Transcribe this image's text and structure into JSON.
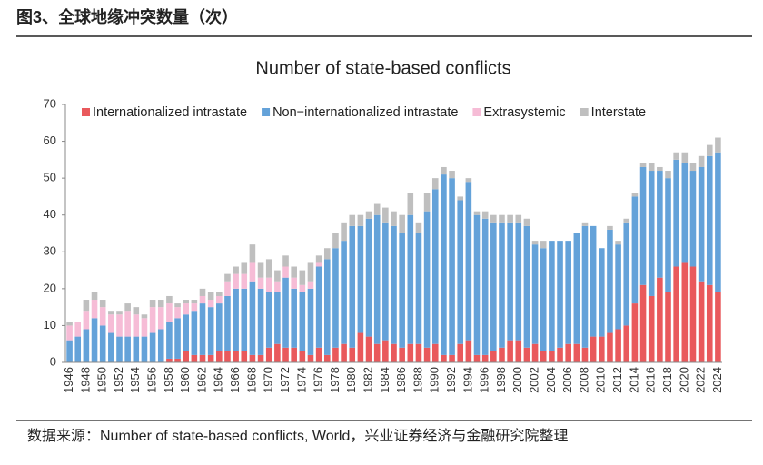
{
  "header": {
    "title": "图3、全球地缘冲突数量（次）"
  },
  "chart_data": {
    "type": "stacked_bar",
    "title": "Number of state-based conflicts",
    "categories": [
      "1946",
      null,
      "1948",
      null,
      "1950",
      null,
      "1952",
      null,
      "1954",
      null,
      "1956",
      null,
      "1958",
      null,
      "1960",
      null,
      "1962",
      null,
      "1964",
      null,
      "1966",
      null,
      "1968",
      null,
      "1970",
      null,
      "1972",
      null,
      "1974",
      null,
      "1976",
      null,
      "1978",
      null,
      "1980",
      null,
      "1982",
      null,
      "1984",
      null,
      "1986",
      null,
      "1988",
      null,
      "1990",
      null,
      "1992",
      null,
      "1994",
      null,
      "1996",
      null,
      "1998",
      null,
      "2000",
      null,
      "2002",
      null,
      "2004",
      null,
      "2006",
      null,
      "2008",
      null,
      "2010",
      null,
      "2012",
      null,
      "2014",
      null,
      "2016",
      null,
      "2018",
      null,
      "2020",
      null,
      "2022",
      null,
      "2024"
    ],
    "series": [
      {
        "name": "Internationalized intrastate",
        "color": "#e9595c",
        "values": [
          0,
          0,
          0,
          0,
          0,
          0,
          0,
          0,
          0,
          0,
          0,
          0,
          1,
          1,
          3,
          2,
          2,
          2,
          3,
          3,
          3,
          3,
          2,
          2,
          4,
          5,
          4,
          4,
          3,
          2,
          4,
          2,
          4,
          5,
          4,
          8,
          7,
          5,
          6,
          5,
          4,
          5,
          5,
          4,
          5,
          2,
          2,
          5,
          6,
          2,
          2,
          3,
          4,
          6,
          6,
          4,
          5,
          3,
          3,
          4,
          5,
          5,
          4,
          7,
          7,
          8,
          9,
          10,
          16,
          21,
          18,
          23,
          19,
          26,
          27,
          26,
          22,
          21,
          19
        ]
      },
      {
        "name": "Non−internationalized intrastate",
        "color": "#64a2d9",
        "values": [
          6,
          7,
          9,
          12,
          10,
          8,
          7,
          7,
          7,
          7,
          8,
          9,
          10,
          11,
          10,
          12,
          14,
          13,
          13,
          15,
          17,
          17,
          20,
          18,
          15,
          14,
          19,
          16,
          16,
          18,
          22,
          26,
          27,
          28,
          33,
          29,
          32,
          35,
          32,
          32,
          31,
          35,
          30,
          37,
          42,
          49,
          48,
          39,
          43,
          38,
          37,
          35,
          34,
          32,
          32,
          33,
          27,
          28,
          30,
          29,
          28,
          30,
          33,
          30,
          24,
          28,
          23,
          28,
          29,
          32,
          34,
          29,
          31,
          29,
          27,
          26,
          31,
          35,
          38
        ]
      },
      {
        "name": "Extrasystemic",
        "color": "#f6bcd6",
        "values": [
          4,
          4,
          5,
          5,
          5,
          5,
          6,
          7,
          6,
          5,
          7,
          6,
          5,
          3,
          3,
          2,
          2,
          2,
          2,
          4,
          4,
          4,
          5,
          3,
          4,
          3,
          3,
          3,
          2,
          2,
          1,
          0,
          0,
          0,
          0,
          0,
          0,
          0,
          0,
          0,
          0,
          0,
          0,
          0,
          0,
          0,
          0,
          0,
          0,
          0,
          0,
          0,
          0,
          0,
          0,
          0,
          0,
          0,
          0,
          0,
          0,
          0,
          0,
          0,
          0,
          0,
          0,
          0,
          0,
          0,
          0,
          0,
          0,
          0,
          0,
          0,
          0,
          0,
          0
        ]
      },
      {
        "name": "Interstate",
        "color": "#bfbfbf",
        "values": [
          1,
          0,
          3,
          2,
          2,
          1,
          1,
          2,
          2,
          1,
          2,
          2,
          2,
          1,
          1,
          1,
          2,
          2,
          1,
          2,
          2,
          3,
          5,
          4,
          5,
          3,
          3,
          3,
          4,
          5,
          2,
          3,
          4,
          5,
          3,
          3,
          2,
          3,
          4,
          4,
          5,
          6,
          3,
          5,
          3,
          2,
          2,
          1,
          1,
          1,
          2,
          2,
          2,
          2,
          2,
          2,
          1,
          2,
          0,
          0,
          0,
          0,
          1,
          0,
          0,
          1,
          1,
          1,
          1,
          1,
          2,
          1,
          2,
          2,
          3,
          2,
          3,
          3,
          4
        ]
      }
    ],
    "ylim": [
      0,
      70
    ],
    "yticks": [
      0,
      10,
      20,
      30,
      40,
      50,
      60,
      70
    ],
    "legend": "top"
  },
  "footer": {
    "source": "数据来源：Number of state-based conflicts, World，兴业证券经济与金融研究院整理"
  }
}
